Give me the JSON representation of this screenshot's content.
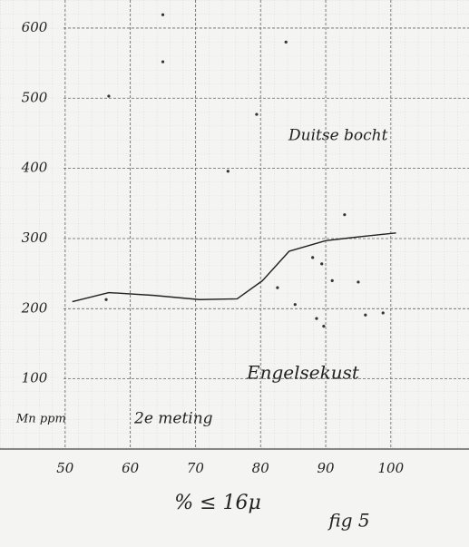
{
  "chart_data": {
    "type": "scatter",
    "y_label": "Mn ppm",
    "x_label": "% ≤ 16μ",
    "caption": "fig 5",
    "annotations": [
      "Duitse bocht",
      "Engelsekust",
      "2e meting"
    ],
    "xlim": [
      40,
      112
    ],
    "ylim": [
      0,
      640
    ],
    "xticks": [
      50,
      60,
      70,
      80,
      90,
      100
    ],
    "yticks": [
      100,
      200,
      300,
      400,
      500,
      600
    ],
    "grid": true,
    "series": [
      {
        "kind": "points",
        "color": "#333",
        "x": [
          56.7,
          65,
          65,
          83.9,
          79.4,
          75,
          92.9,
          88,
          89.4,
          82.6,
          91,
          95,
          85.3,
          88.6,
          89.7,
          96.1,
          98.8,
          56.3
        ],
        "values": [
          503,
          619,
          552,
          580,
          477,
          396,
          334,
          273,
          264,
          230,
          240,
          238,
          206,
          186,
          175,
          191,
          194,
          213
        ]
      },
      {
        "kind": "curve",
        "color": "#222",
        "x": [
          51.1,
          56.7,
          63.6,
          70.6,
          76.4,
          80.3,
          84.4,
          90,
          95.6,
          100.8
        ],
        "values": [
          210,
          223,
          219,
          213,
          214,
          240,
          282,
          297,
          303,
          308
        ]
      }
    ]
  }
}
